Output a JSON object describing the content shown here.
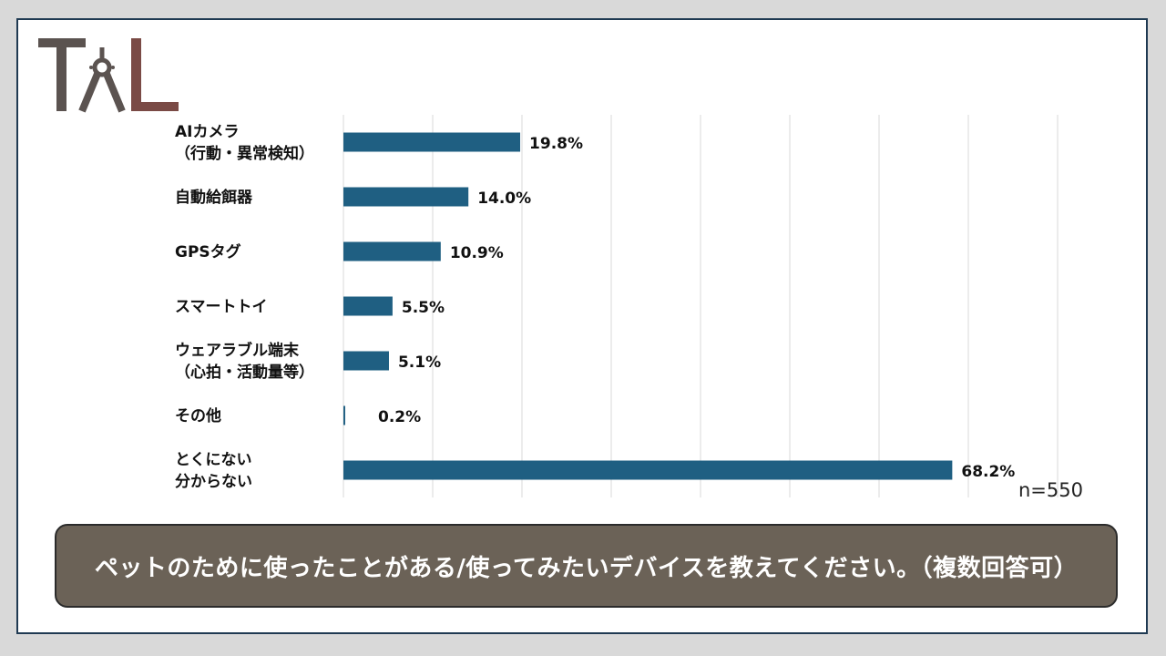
{
  "logo": {
    "text": "TAL",
    "colors": [
      "#5b5350",
      "#7a4a45"
    ]
  },
  "sample_note": "n=550",
  "caption": "ペットのために使ったことがある/使ってみたいデバイスを教えてください。（複数回答可）",
  "colors": {
    "bar": "#1f5f82",
    "grid": "#d9d9d9",
    "caption_bg": "#6b6257"
  },
  "chart_data": {
    "type": "bar",
    "orientation": "horizontal",
    "categories": [
      [
        "AIカメラ",
        "（行動・異常検知）"
      ],
      [
        "自動給餌器"
      ],
      [
        "GPSタグ"
      ],
      [
        "スマートトイ"
      ],
      [
        "ウェアラブル端末",
        "（心拍・活動量等）"
      ],
      [
        "その他"
      ],
      [
        "とくにない",
        "分からない"
      ]
    ],
    "values": [
      19.8,
      14.0,
      10.9,
      5.5,
      5.1,
      0.2,
      68.2
    ],
    "value_labels": [
      "19.8%",
      "14.0%",
      "10.9%",
      "5.5%",
      "5.1%",
      "0.2%",
      "68.2%"
    ],
    "xlim": [
      0,
      80
    ],
    "grid": true,
    "unit": "%"
  }
}
